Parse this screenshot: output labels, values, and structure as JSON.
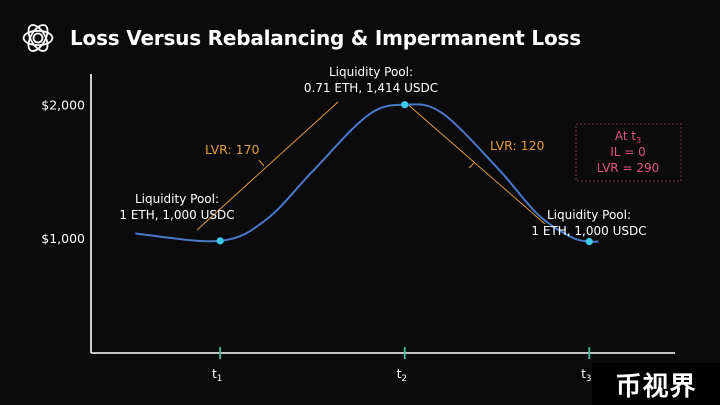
{
  "header": {
    "title": "Loss Versus Rebalancing & Impermanent Loss",
    "logo_icon": "flower-network-logo-icon"
  },
  "chart_data": {
    "type": "line",
    "title": "",
    "y_ticks": [
      {
        "value": 2000,
        "label": "$2,000"
      },
      {
        "value": 1000,
        "label": "$1,000"
      }
    ],
    "x_ticks": [
      {
        "value": 1,
        "label": "t",
        "sub": "1"
      },
      {
        "value": 2,
        "label": "t",
        "sub": "2"
      },
      {
        "value": 3,
        "label": "t",
        "sub": "3"
      }
    ],
    "xlim": [
      0.3,
      3.6
    ],
    "ylim": [
      140,
      2230
    ],
    "series": [
      {
        "color": "#4a78c8",
        "points": [
          [
            0.54,
            1035
          ],
          [
            1.0,
            980
          ],
          [
            1.25,
            1140
          ],
          [
            1.5,
            1500
          ],
          [
            1.8,
            1920
          ],
          [
            2.0,
            2000
          ],
          [
            2.2,
            1940
          ],
          [
            2.5,
            1530
          ],
          [
            2.72,
            1180
          ],
          [
            2.9,
            1010
          ],
          [
            3.0,
            975
          ],
          [
            3.05,
            975
          ]
        ]
      }
    ],
    "markers": [
      {
        "x": 1.0,
        "y": 980,
        "label_lines": [
          "Liquidity Pool:",
          "1 ETH, 1,000 USDC"
        ]
      },
      {
        "x": 2.0,
        "y": 2000,
        "label_lines": [
          "Liquidity Pool:",
          "0.71 ETH, 1,414 USDC"
        ]
      },
      {
        "x": 3.0,
        "y": 975,
        "label_lines": [
          "Liquidity Pool:",
          "1 ETH, 1,000 USDC"
        ]
      }
    ],
    "annotations": [
      {
        "text": "LVR:  170",
        "color": "#e19b3a"
      },
      {
        "text": "LVR:  120",
        "color": "#e19b3a"
      }
    ],
    "summary_box": {
      "lines": [
        {
          "text": "At t",
          "sub": "3"
        },
        {
          "text": "IL = 0"
        },
        {
          "text": "LVR = 290"
        }
      ],
      "color": "#e0567a",
      "border_color": "#7a3546"
    },
    "colors": {
      "axis": "#ffffff",
      "tick": "#3fbf9f",
      "marker": "#3fc9e8",
      "label_text": "#ffffff",
      "lvr_line": "#e19b3a"
    }
  },
  "watermark": {
    "text": "币视界"
  }
}
